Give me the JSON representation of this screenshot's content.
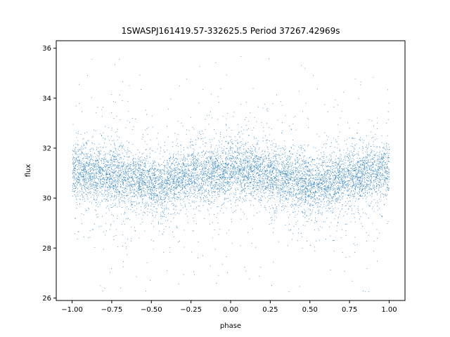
{
  "chart_data": {
    "type": "scatter",
    "title": "1SWASPJ161419.57-332625.5 Period 37267.42969s",
    "xlabel": "phase",
    "ylabel": "flux",
    "xlim": [
      -1.1,
      1.1
    ],
    "ylim": [
      25.9,
      36.3
    ],
    "xticks": [
      -1.0,
      -0.75,
      -0.5,
      -0.25,
      0.0,
      0.25,
      0.5,
      0.75,
      1.0
    ],
    "xtick_labels": [
      "−1.00",
      "−0.75",
      "−0.50",
      "−0.25",
      "0.00",
      "0.25",
      "0.50",
      "0.75",
      "1.00"
    ],
    "yticks": [
      26,
      28,
      30,
      32,
      34,
      36
    ],
    "ytick_labels": [
      "26",
      "28",
      "30",
      "32",
      "34",
      "36"
    ],
    "grid": false,
    "legend": "none",
    "point_color": "#1f77b4",
    "phase_range": [
      -1.0,
      1.0
    ],
    "mean_flux": 31.0,
    "minima": [
      {
        "phase": -0.45,
        "flux": 30.5
      },
      {
        "phase": 0.55,
        "flux": 30.5
      }
    ],
    "maxima": [
      {
        "phase": -0.95,
        "flux": 31.2
      },
      {
        "phase": 0.05,
        "flux": 31.2
      }
    ],
    "approx_points": 30000,
    "series": [
      {
        "phase": [
          -1.0,
          -0.75,
          -0.5,
          -0.45,
          -0.25,
          0.0,
          0.05,
          0.25,
          0.5,
          0.55,
          0.75,
          1.0
        ],
        "flux": [
          31.1,
          30.9,
          30.6,
          30.5,
          30.9,
          31.1,
          31.2,
          30.9,
          30.6,
          30.5,
          30.9,
          31.1
        ]
      }
    ]
  }
}
